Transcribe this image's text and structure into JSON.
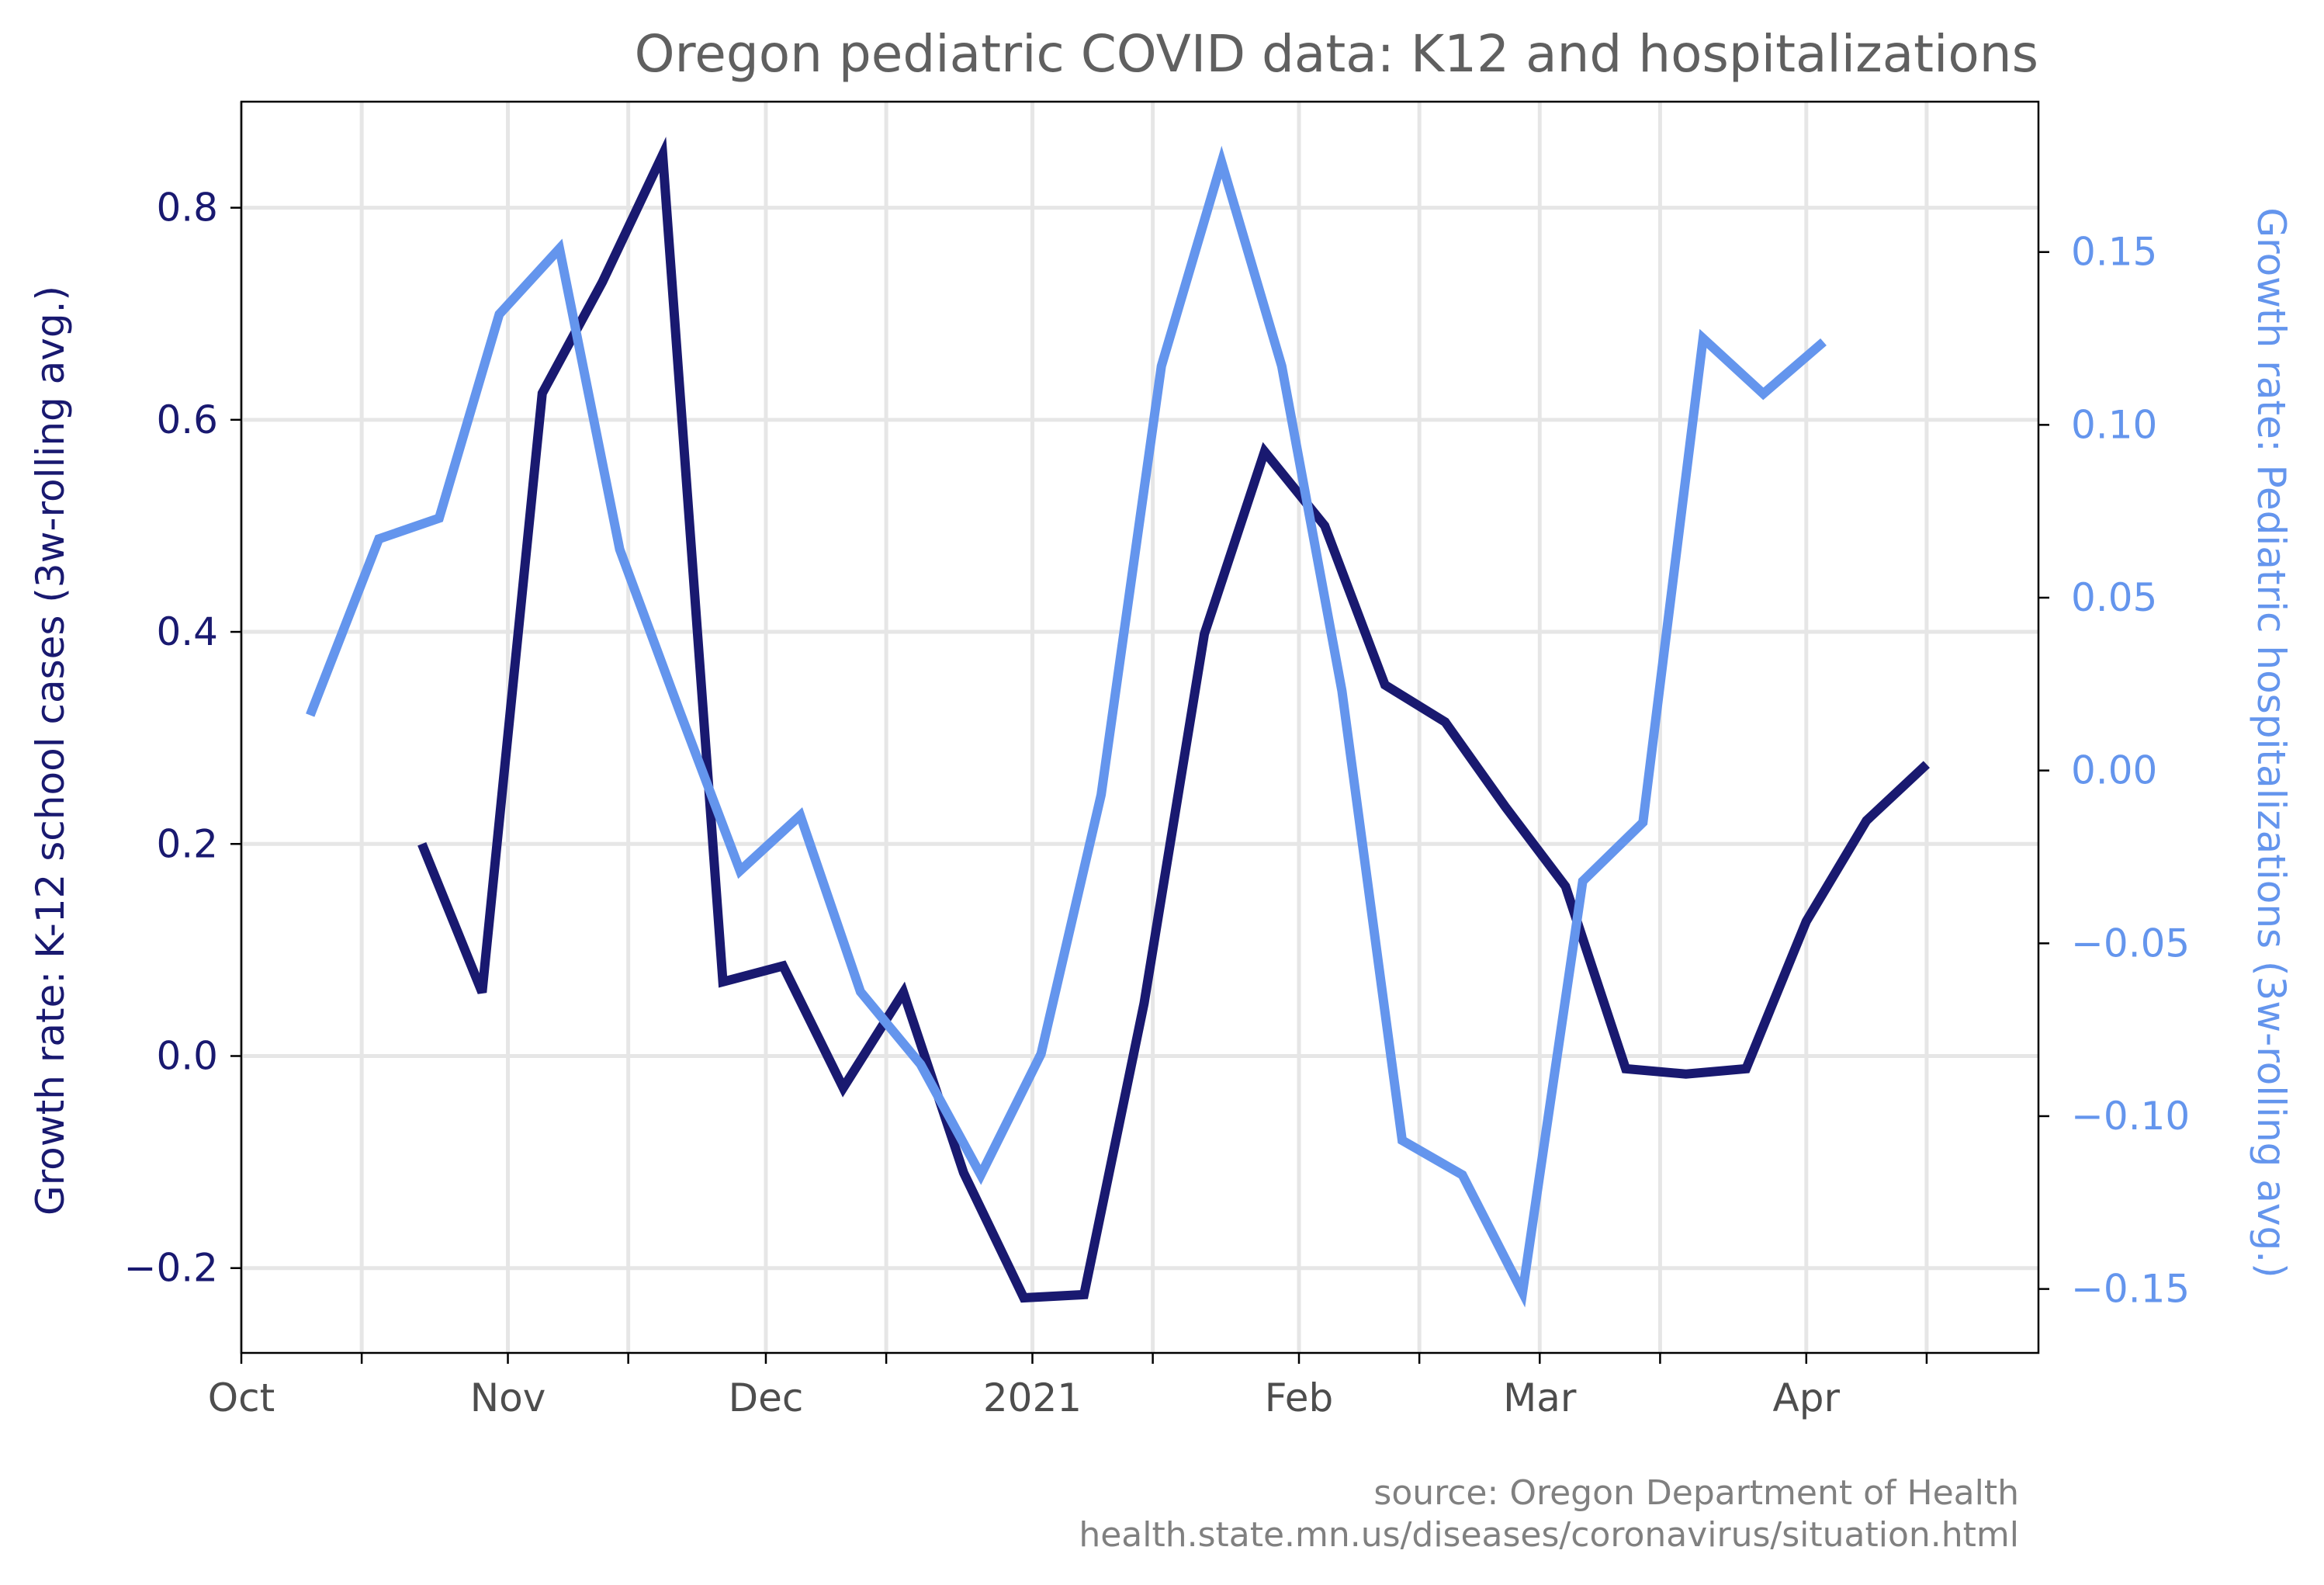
{
  "chart_data": {
    "type": "line",
    "title": "Oregon pediatric COVID data: K12 and hospitalizations",
    "source_line1": "source: Oregon Department of Health",
    "source_line2": "health.state.mn.us/diseases/coronavirus/situation.html",
    "left_axis": {
      "label": "Growth rate: K-12 school cases (3w-rolling avg.)",
      "ylim": [
        -0.28,
        0.9
      ],
      "ticks": [
        -0.2,
        0.0,
        0.2,
        0.4,
        0.6,
        0.8
      ],
      "tick_labels": [
        "−0.2",
        "0.0",
        "0.2",
        "0.4",
        "0.6",
        "0.8"
      ],
      "color": "#191970"
    },
    "right_axis": {
      "label": "Growth rate: Pediatric hospitalizations (3w-rolling avg.)",
      "ylim": [
        -0.1685,
        0.1935
      ],
      "ticks": [
        -0.15,
        -0.1,
        -0.05,
        0.0,
        0.05,
        0.1,
        0.15
      ],
      "tick_labels": [
        "−0.15",
        "−0.10",
        "−0.05",
        "0.00",
        "0.05",
        "0.10",
        "0.15"
      ],
      "color": "#6495ED"
    },
    "x_axis": {
      "xlim": [
        "2020-10-01",
        "2021-04-28"
      ],
      "major_ticks": [
        {
          "date": "2020-10-01",
          "label": "Oct"
        },
        {
          "date": "2020-11-01",
          "label": "Nov"
        },
        {
          "date": "2020-12-01",
          "label": "Dec"
        },
        {
          "date": "2021-01-01",
          "label": "2021"
        },
        {
          "date": "2021-02-01",
          "label": "Feb"
        },
        {
          "date": "2021-03-01",
          "label": "Mar"
        },
        {
          "date": "2021-04-01",
          "label": "Apr"
        }
      ],
      "minor_ticks": [
        "2020-10-15",
        "2020-11-15",
        "2020-12-15",
        "2021-01-15",
        "2021-02-15",
        "2021-03-15",
        "2021-04-15"
      ]
    },
    "grid": true,
    "series": [
      {
        "axis": "left",
        "color": "#191970",
        "points": [
          {
            "x": "2020-10-22",
            "y": 0.2
          },
          {
            "x": "2020-10-29",
            "y": 0.06
          },
          {
            "x": "2020-11-05",
            "y": 0.625
          },
          {
            "x": "2020-11-12",
            "y": 0.73
          },
          {
            "x": "2020-11-19",
            "y": 0.85
          },
          {
            "x": "2020-11-26",
            "y": 0.07
          },
          {
            "x": "2020-12-03",
            "y": 0.085
          },
          {
            "x": "2020-12-10",
            "y": -0.03
          },
          {
            "x": "2020-12-17",
            "y": 0.06
          },
          {
            "x": "2020-12-24",
            "y": -0.11
          },
          {
            "x": "2020-12-31",
            "y": -0.228
          },
          {
            "x": "2021-01-07",
            "y": -0.225
          },
          {
            "x": "2021-01-14",
            "y": 0.05
          },
          {
            "x": "2021-01-21",
            "y": 0.398
          },
          {
            "x": "2021-01-28",
            "y": 0.57
          },
          {
            "x": "2021-02-04",
            "y": 0.5
          },
          {
            "x": "2021-02-11",
            "y": 0.35
          },
          {
            "x": "2021-02-18",
            "y": 0.315
          },
          {
            "x": "2021-02-25",
            "y": 0.235
          },
          {
            "x": "2021-03-04",
            "y": 0.16
          },
          {
            "x": "2021-03-11",
            "y": -0.012
          },
          {
            "x": "2021-03-18",
            "y": -0.017
          },
          {
            "x": "2021-03-25",
            "y": -0.012
          },
          {
            "x": "2021-04-01",
            "y": 0.127
          },
          {
            "x": "2021-04-08",
            "y": 0.222
          },
          {
            "x": "2021-04-15",
            "y": 0.275
          }
        ]
      },
      {
        "axis": "right",
        "color": "#6495ED",
        "points": [
          {
            "x": "2020-10-09",
            "y": 0.016
          },
          {
            "x": "2020-10-17",
            "y": 0.067
          },
          {
            "x": "2020-10-24",
            "y": 0.073
          },
          {
            "x": "2020-10-31",
            "y": 0.132
          },
          {
            "x": "2020-11-07",
            "y": 0.151
          },
          {
            "x": "2020-11-14",
            "y": 0.064
          },
          {
            "x": "2020-11-21",
            "y": 0.017
          },
          {
            "x": "2020-11-28",
            "y": -0.029
          },
          {
            "x": "2020-12-05",
            "y": -0.013
          },
          {
            "x": "2020-12-12",
            "y": -0.064
          },
          {
            "x": "2020-12-19",
            "y": -0.085
          },
          {
            "x": "2020-12-26",
            "y": -0.117
          },
          {
            "x": "2021-01-02",
            "y": -0.082
          },
          {
            "x": "2021-01-09",
            "y": -0.007
          },
          {
            "x": "2021-01-16",
            "y": 0.117
          },
          {
            "x": "2021-01-23",
            "y": 0.176
          },
          {
            "x": "2021-01-30",
            "y": 0.117
          },
          {
            "x": "2021-02-06",
            "y": 0.023
          },
          {
            "x": "2021-02-13",
            "y": -0.107
          },
          {
            "x": "2021-02-20",
            "y": -0.117
          },
          {
            "x": "2021-02-27",
            "y": -0.151
          },
          {
            "x": "2021-03-06",
            "y": -0.032
          },
          {
            "x": "2021-03-13",
            "y": -0.015
          },
          {
            "x": "2021-03-20",
            "y": 0.125
          },
          {
            "x": "2021-03-27",
            "y": 0.109
          },
          {
            "x": "2021-04-03",
            "y": 0.124
          }
        ]
      }
    ]
  }
}
